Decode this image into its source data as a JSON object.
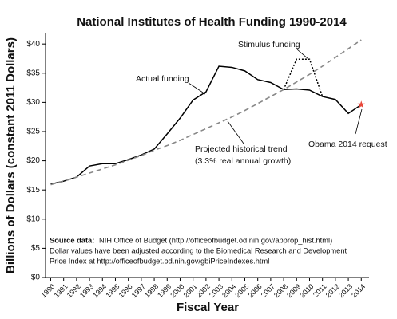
{
  "chart_data": {
    "type": "line",
    "title": "National Institutes of Health Funding 1990-2014",
    "x_label": "Fiscal Year",
    "y_label": "Billions of Dollars (constant 2011 Dollars)",
    "x": [
      1990,
      1991,
      1992,
      1993,
      1994,
      1995,
      1996,
      1997,
      1998,
      1999,
      2000,
      2001,
      2002,
      2003,
      2004,
      2005,
      2006,
      2007,
      2008,
      2009,
      2010,
      2011,
      2012,
      2013,
      2014
    ],
    "xlim": [
      1989.6,
      2014.6
    ],
    "xticks": [
      1990,
      1991,
      1992,
      1993,
      1994,
      1995,
      1996,
      1997,
      1998,
      1999,
      2000,
      2001,
      2002,
      2003,
      2004,
      2005,
      2006,
      2007,
      2008,
      2009,
      2010,
      2011,
      2012,
      2013,
      2014
    ],
    "ylim": [
      0,
      41.8
    ],
    "yticks": [
      {
        "value": 0,
        "label": "$0"
      },
      {
        "value": 5,
        "label": "$5"
      },
      {
        "value": 10,
        "label": "$10"
      },
      {
        "value": 15,
        "label": "$15"
      },
      {
        "value": 20,
        "label": "$20"
      },
      {
        "value": 25,
        "label": "$25"
      },
      {
        "value": 30,
        "label": "$30"
      },
      {
        "value": 35,
        "label": "$35"
      },
      {
        "value": 40,
        "label": "$40"
      }
    ],
    "series": [
      {
        "name": "Actual funding",
        "color": "#000000",
        "style": "solid",
        "values": [
          16.0,
          16.5,
          17.2,
          19.1,
          19.5,
          19.5,
          20.2,
          21.0,
          22.0,
          24.6,
          27.3,
          30.4,
          31.8,
          36.2,
          36.0,
          35.4,
          33.9,
          33.4,
          32.2,
          32.3,
          32.1,
          31.0,
          30.5,
          28.1,
          29.6
        ]
      },
      {
        "name": "Stimulus funding",
        "color": "#000000",
        "style": "dotted",
        "values": [
          null,
          null,
          null,
          null,
          null,
          null,
          null,
          null,
          null,
          null,
          null,
          null,
          null,
          null,
          null,
          null,
          null,
          null,
          32.2,
          37.4,
          37.4,
          31.0,
          null,
          null,
          null
        ]
      },
      {
        "name": "Projected historical trend",
        "sublabel": "(3.3% real annual growth)",
        "color": "#888888",
        "style": "dashed",
        "values": [
          15.9,
          16.5,
          17.2,
          17.9,
          18.6,
          19.3,
          20.1,
          20.9,
          21.8,
          22.6,
          23.5,
          24.5,
          25.5,
          26.5,
          27.5,
          28.6,
          29.8,
          31.0,
          32.2,
          33.5,
          34.8,
          36.2,
          37.7,
          39.2,
          40.7
        ]
      }
    ],
    "highlight": {
      "series": 0,
      "index": 24,
      "color": "#e8483a",
      "label": "Obama 2014 request"
    },
    "source": {
      "label": "Source data:",
      "lines": [
        "NIH Office of Budget (http://officeofbudget.od.nih.gov/approp_hist.html)",
        "Dollar values have been adjusted according to the Biomedical Research and Development",
        "Price Index at http://officeofbudget.od.nih.gov/gbiPriceIndexes.html"
      ]
    }
  }
}
